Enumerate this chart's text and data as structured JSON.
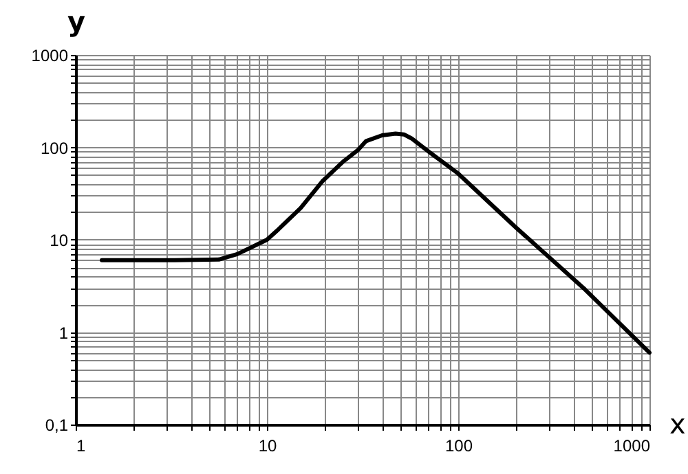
{
  "chart_data": {
    "type": "line",
    "xlabel": "x",
    "ylabel": "y",
    "x": [
      1.37,
      3,
      5.6,
      7,
      10,
      11.5,
      15,
      19.5,
      25,
      30,
      33,
      40,
      47,
      52,
      57,
      70,
      100,
      200,
      460,
      1000
    ],
    "series": [
      {
        "color": "#000000",
        "values": [
          6,
          6,
          6.1,
          7,
          10,
          13,
          22,
          43,
          70,
          94,
          117,
          135,
          141,
          138,
          125,
          90,
          52,
          13.6,
          2.9,
          0.6
        ]
      }
    ],
    "log": "xy",
    "grid": true,
    "marker": "none",
    "line_style": "solid",
    "xlim": [
      1,
      1000
    ],
    "ylim": [
      0.1,
      1000
    ],
    "xticks": [
      1,
      {
        "value": 2,
        "label": null
      },
      {
        "value": 3,
        "label": null
      },
      {
        "value": 4,
        "label": null
      },
      {
        "value": 5,
        "label": null
      },
      {
        "value": 6,
        "label": null
      },
      {
        "value": 7,
        "label": null
      },
      {
        "value": 8,
        "label": null
      },
      {
        "value": 9,
        "label": null
      },
      10,
      {
        "value": 20,
        "label": null
      },
      {
        "value": 30,
        "label": null
      },
      {
        "value": 40,
        "label": null
      },
      {
        "value": 50,
        "label": null
      },
      {
        "value": 60,
        "label": null
      },
      {
        "value": 70,
        "label": null
      },
      {
        "value": 80,
        "label": null
      },
      {
        "value": 90,
        "label": null
      },
      100,
      {
        "value": 200,
        "label": null
      },
      {
        "value": 300,
        "label": null
      },
      {
        "value": 400,
        "label": null
      },
      {
        "value": 500,
        "label": null
      },
      {
        "value": 600,
        "label": null
      },
      {
        "value": 700,
        "label": null
      },
      {
        "value": 800,
        "label": null
      },
      {
        "value": 900,
        "label": null
      },
      1000
    ],
    "yticks": [
      {
        "value": 0.1,
        "label": "0,1"
      },
      {
        "value": 0.2,
        "label": null
      },
      {
        "value": 0.3,
        "label": null
      },
      {
        "value": 0.4,
        "label": null
      },
      {
        "value": 0.5,
        "label": null
      },
      {
        "value": 0.6,
        "label": null
      },
      {
        "value": 0.7,
        "label": null
      },
      {
        "value": 0.8,
        "label": null
      },
      {
        "value": 0.9,
        "label": null
      },
      1,
      {
        "value": 2,
        "label": null
      },
      {
        "value": 3,
        "label": null
      },
      {
        "value": 4,
        "label": null
      },
      {
        "value": 5,
        "label": null
      },
      {
        "value": 6,
        "label": null
      },
      {
        "value": 7,
        "label": null
      },
      {
        "value": 8,
        "label": null
      },
      {
        "value": 9,
        "label": null
      },
      10,
      {
        "value": 20,
        "label": null
      },
      {
        "value": 30,
        "label": null
      },
      {
        "value": 40,
        "label": null
      },
      {
        "value": 50,
        "label": null
      },
      {
        "value": 60,
        "label": null
      },
      {
        "value": 70,
        "label": null
      },
      {
        "value": 80,
        "label": null
      },
      {
        "value": 90,
        "label": null
      },
      100,
      {
        "value": 200,
        "label": null
      },
      {
        "value": 300,
        "label": null
      },
      {
        "value": 400,
        "label": null
      },
      {
        "value": 500,
        "label": null
      },
      {
        "value": 600,
        "label": null
      },
      {
        "value": 700,
        "label": null
      },
      {
        "value": 800,
        "label": null
      },
      {
        "value": 900,
        "label": null
      },
      1000
    ]
  }
}
